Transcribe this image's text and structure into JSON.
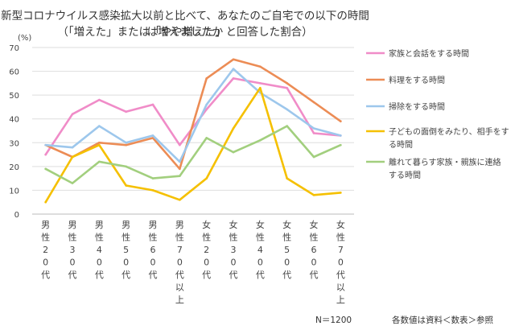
{
  "chart_data": {
    "type": "line",
    "title": "新型コロナウイルス感染拡大以前と比べて、あなたのご自宅での以下の時間は増えましたか",
    "subtitle": "（「増えた」または「やや増えた」と回答した割合）",
    "ylabel": "(%)",
    "ylim": [
      0,
      70
    ],
    "yticks": [
      0,
      10,
      20,
      30,
      40,
      50,
      60,
      70
    ],
    "grid": true,
    "legend_position": "right",
    "categories": [
      "男性20代",
      "男性30代",
      "男性40代",
      "男性50代",
      "男性60代",
      "男性70代以上",
      "女性20代",
      "女性30代",
      "女性40代",
      "女性50代",
      "女性60代",
      "女性70代以上"
    ],
    "category_labels": [
      [
        "男",
        "性",
        "2",
        "0",
        "代"
      ],
      [
        "男",
        "性",
        "3",
        "0",
        "代"
      ],
      [
        "男",
        "性",
        "4",
        "0",
        "代"
      ],
      [
        "男",
        "性",
        "5",
        "0",
        "代"
      ],
      [
        "男",
        "性",
        "6",
        "0",
        "代"
      ],
      [
        "男",
        "性",
        "7",
        "0",
        "代",
        "以",
        "上"
      ],
      [
        "女",
        "性",
        "2",
        "0",
        "代"
      ],
      [
        "女",
        "性",
        "3",
        "0",
        "代"
      ],
      [
        "女",
        "性",
        "4",
        "0",
        "代"
      ],
      [
        "女",
        "性",
        "5",
        "0",
        "代"
      ],
      [
        "女",
        "性",
        "6",
        "0",
        "代"
      ],
      [
        "女",
        "性",
        "7",
        "0",
        "代",
        "以",
        "上"
      ]
    ],
    "series": [
      {
        "name": "家族と会話をする時間",
        "legend_lines": [
          "家族と会話をする時間"
        ],
        "color": "#f08cc8",
        "values": [
          25,
          42,
          48,
          43,
          46,
          29,
          44,
          57,
          55,
          53,
          34,
          33
        ]
      },
      {
        "name": "料理をする時間",
        "legend_lines": [
          "料理をする時間"
        ],
        "color": "#ec8c55",
        "values": [
          29,
          24,
          30,
          29,
          32,
          19,
          57,
          65,
          62,
          55,
          47,
          39
        ]
      },
      {
        "name": "掃除をする時間",
        "legend_lines": [
          "掃除をする時間"
        ],
        "color": "#9dc7ec",
        "values": [
          29,
          28,
          37,
          30,
          33,
          22,
          46,
          61,
          51,
          44,
          36,
          33
        ]
      },
      {
        "name": "子どもの面倒をみたり、相手をする時間",
        "legend_lines": [
          "子どもの面倒をみたり、相手をす",
          "る時間"
        ],
        "color": "#f5c000",
        "values": [
          5,
          24,
          29,
          12,
          10,
          6,
          15,
          36,
          53,
          15,
          8,
          9
        ]
      },
      {
        "name": "離れて暮らす家族・親族に連絡する時間",
        "legend_lines": [
          "離れて暮らす家族・親族に連絡",
          "する時間"
        ],
        "color": "#a2cf7e",
        "values": [
          19,
          13,
          22,
          20,
          15,
          16,
          32,
          26,
          31,
          37,
          24,
          29
        ]
      }
    ],
    "footer_n": "N＝1200",
    "footer_note": "各数値は資料＜数表＞参照"
  }
}
